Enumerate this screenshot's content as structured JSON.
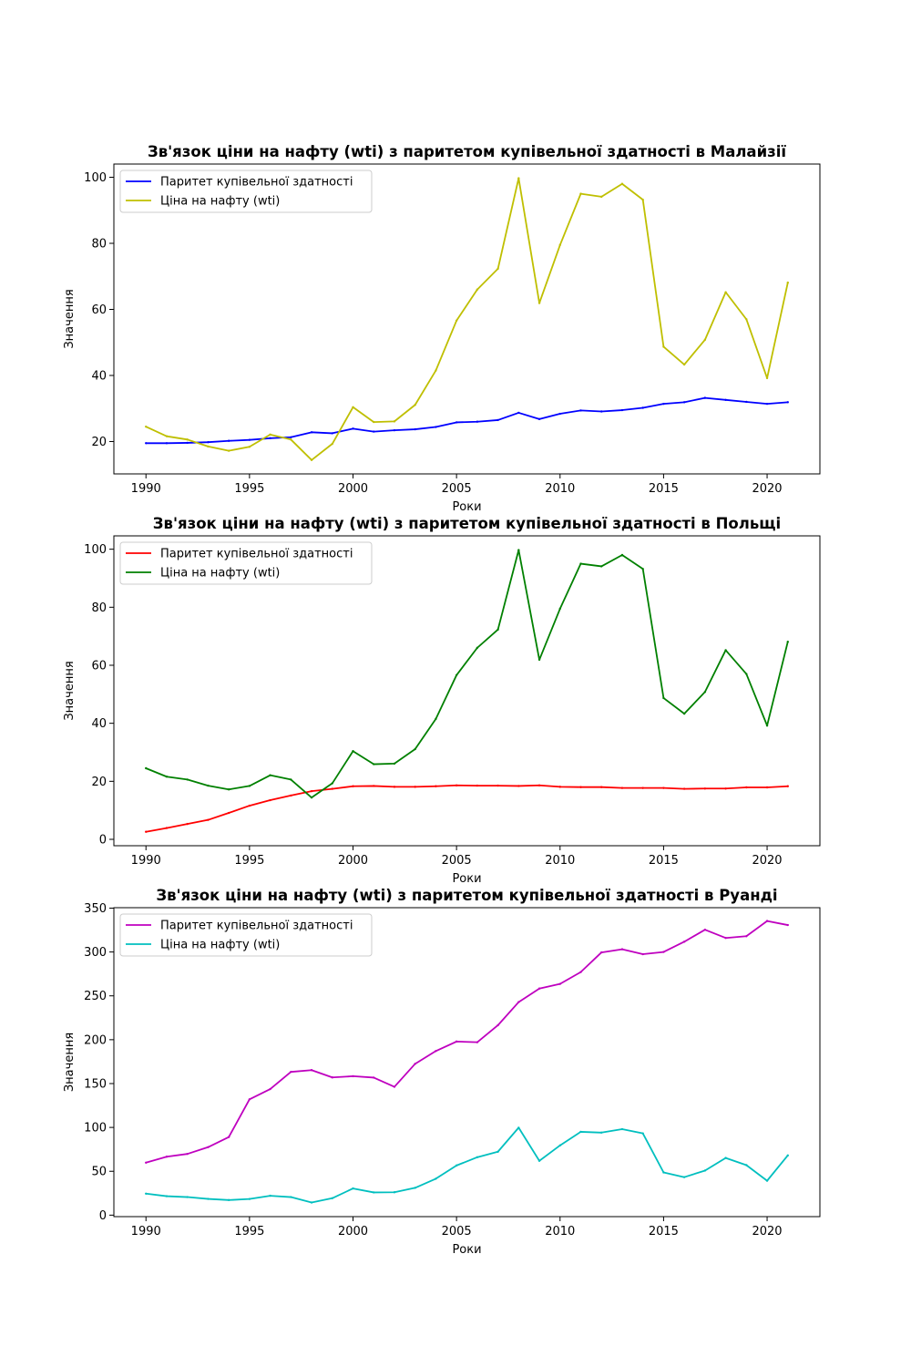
{
  "chart_data": [
    {
      "type": "line",
      "title": "Зв'язок ціни на нафту (wti) з паритетом купівельної здатності в Малайзії",
      "xlabel": "Роки",
      "ylabel": "Значення",
      "x": [
        1990,
        1991,
        1992,
        1993,
        1994,
        1995,
        1996,
        1997,
        1998,
        1999,
        2000,
        2001,
        2002,
        2003,
        2004,
        2005,
        2006,
        2007,
        2008,
        2009,
        2010,
        2011,
        2012,
        2013,
        2014,
        2015,
        2016,
        2017,
        2018,
        2019,
        2020,
        2021
      ],
      "xlim": [
        1988.45,
        2022.55
      ],
      "ylim": [
        10.2,
        104
      ],
      "xticks": [
        1990,
        1995,
        2000,
        2005,
        2010,
        2015,
        2020
      ],
      "yticks": [
        20,
        40,
        60,
        80,
        100
      ],
      "grid": false,
      "legend_position": "upper-left",
      "series": [
        {
          "name": "Паритет купівельної здатності",
          "color": "#0000ff",
          "values": [
            19.5,
            19.5,
            19.6,
            19.8,
            20.2,
            20.5,
            21.0,
            21.3,
            22.8,
            22.5,
            23.9,
            23.0,
            23.4,
            23.7,
            24.4,
            25.8,
            26.0,
            26.5,
            28.7,
            26.8,
            28.4,
            29.4,
            29.1,
            29.5,
            30.2,
            31.4,
            31.9,
            33.2,
            32.6,
            32.0,
            31.4,
            31.9
          ]
        },
        {
          "name": "Ціна на нафту (wti)",
          "color": "#bfbf00",
          "values": [
            24.5,
            21.6,
            20.6,
            18.5,
            17.2,
            18.4,
            22.1,
            20.6,
            14.4,
            19.3,
            30.4,
            25.9,
            26.1,
            31.1,
            41.5,
            56.6,
            66.0,
            72.3,
            99.7,
            61.9,
            79.5,
            95.0,
            94.1,
            98.0,
            93.2,
            48.7,
            43.3,
            50.8,
            65.2,
            57.0,
            39.2,
            68.1
          ]
        }
      ]
    },
    {
      "type": "line",
      "title": "Зв'язок ціни на нафту (wti) з паритетом купівельної здатності в Польщі",
      "xlabel": "Роки",
      "ylabel": "Значення",
      "x": [
        1990,
        1991,
        1992,
        1993,
        1994,
        1995,
        1996,
        1997,
        1998,
        1999,
        2000,
        2001,
        2002,
        2003,
        2004,
        2005,
        2006,
        2007,
        2008,
        2009,
        2010,
        2011,
        2012,
        2013,
        2014,
        2015,
        2016,
        2017,
        2018,
        2019,
        2020,
        2021
      ],
      "xlim": [
        1988.45,
        2022.55
      ],
      "ylim": [
        -2.2,
        104.6
      ],
      "xticks": [
        1990,
        1995,
        2000,
        2005,
        2010,
        2015,
        2020
      ],
      "yticks": [
        0,
        20,
        40,
        60,
        80,
        100
      ],
      "grid": false,
      "legend_position": "upper-left",
      "series": [
        {
          "name": "Паритет купівельної здатності",
          "color": "#ff0000",
          "values": [
            2.6,
            3.9,
            5.3,
            6.7,
            9.1,
            11.6,
            13.5,
            15.1,
            16.6,
            17.4,
            18.3,
            18.4,
            18.1,
            18.1,
            18.3,
            18.6,
            18.5,
            18.5,
            18.4,
            18.6,
            18.1,
            18.0,
            18.0,
            17.7,
            17.7,
            17.7,
            17.4,
            17.5,
            17.5,
            17.9,
            17.9,
            18.3
          ]
        },
        {
          "name": "Ціна на нафту (wti)",
          "color": "#008000",
          "values": [
            24.5,
            21.6,
            20.6,
            18.5,
            17.2,
            18.4,
            22.1,
            20.6,
            14.4,
            19.3,
            30.4,
            25.9,
            26.1,
            31.1,
            41.5,
            56.6,
            66.0,
            72.3,
            99.7,
            61.9,
            79.5,
            95.0,
            94.1,
            98.0,
            93.2,
            48.7,
            43.3,
            50.8,
            65.2,
            57.0,
            39.2,
            68.1
          ]
        }
      ]
    },
    {
      "type": "line",
      "title": "Зв'язок ціни на нафту (wti) з паритетом купівельної здатності в Руанді",
      "xlabel": "Роки",
      "ylabel": "Значення",
      "x": [
        1990,
        1991,
        1992,
        1993,
        1994,
        1995,
        1996,
        1997,
        1998,
        1999,
        2000,
        2001,
        2002,
        2003,
        2004,
        2005,
        2006,
        2007,
        2008,
        2009,
        2010,
        2011,
        2012,
        2013,
        2014,
        2015,
        2016,
        2017,
        2018,
        2019,
        2020,
        2021
      ],
      "xlim": [
        1988.45,
        2022.55
      ],
      "ylim": [
        -1.7,
        350.5
      ],
      "xticks": [
        1990,
        1995,
        2000,
        2005,
        2010,
        2015,
        2020
      ],
      "yticks": [
        0,
        50,
        100,
        150,
        200,
        250,
        300,
        350
      ],
      "grid": false,
      "legend_position": "upper-left",
      "series": [
        {
          "name": "Паритет купівельної здатності",
          "color": "#bf00bf",
          "values": [
            59.8,
            66.6,
            69.8,
            77.5,
            89.0,
            132.0,
            143.7,
            163.3,
            165.3,
            157.0,
            158.4,
            156.8,
            146.3,
            172.5,
            187.1,
            197.9,
            197.1,
            216.5,
            242.9,
            258.3,
            263.6,
            277.1,
            299.5,
            303.1,
            297.5,
            300.0,
            311.7,
            325.4,
            316.0,
            318.0,
            335.3,
            330.7
          ]
        },
        {
          "name": "Ціна на нафту (wti)",
          "color": "#00bfbf",
          "values": [
            24.5,
            21.6,
            20.6,
            18.5,
            17.2,
            18.4,
            22.1,
            20.6,
            14.4,
            19.3,
            30.4,
            25.9,
            26.1,
            31.1,
            41.5,
            56.6,
            66.0,
            72.3,
            99.7,
            61.9,
            79.5,
            95.0,
            94.1,
            98.0,
            93.2,
            48.7,
            43.3,
            50.8,
            65.2,
            57.0,
            39.2,
            68.1
          ]
        }
      ]
    }
  ]
}
